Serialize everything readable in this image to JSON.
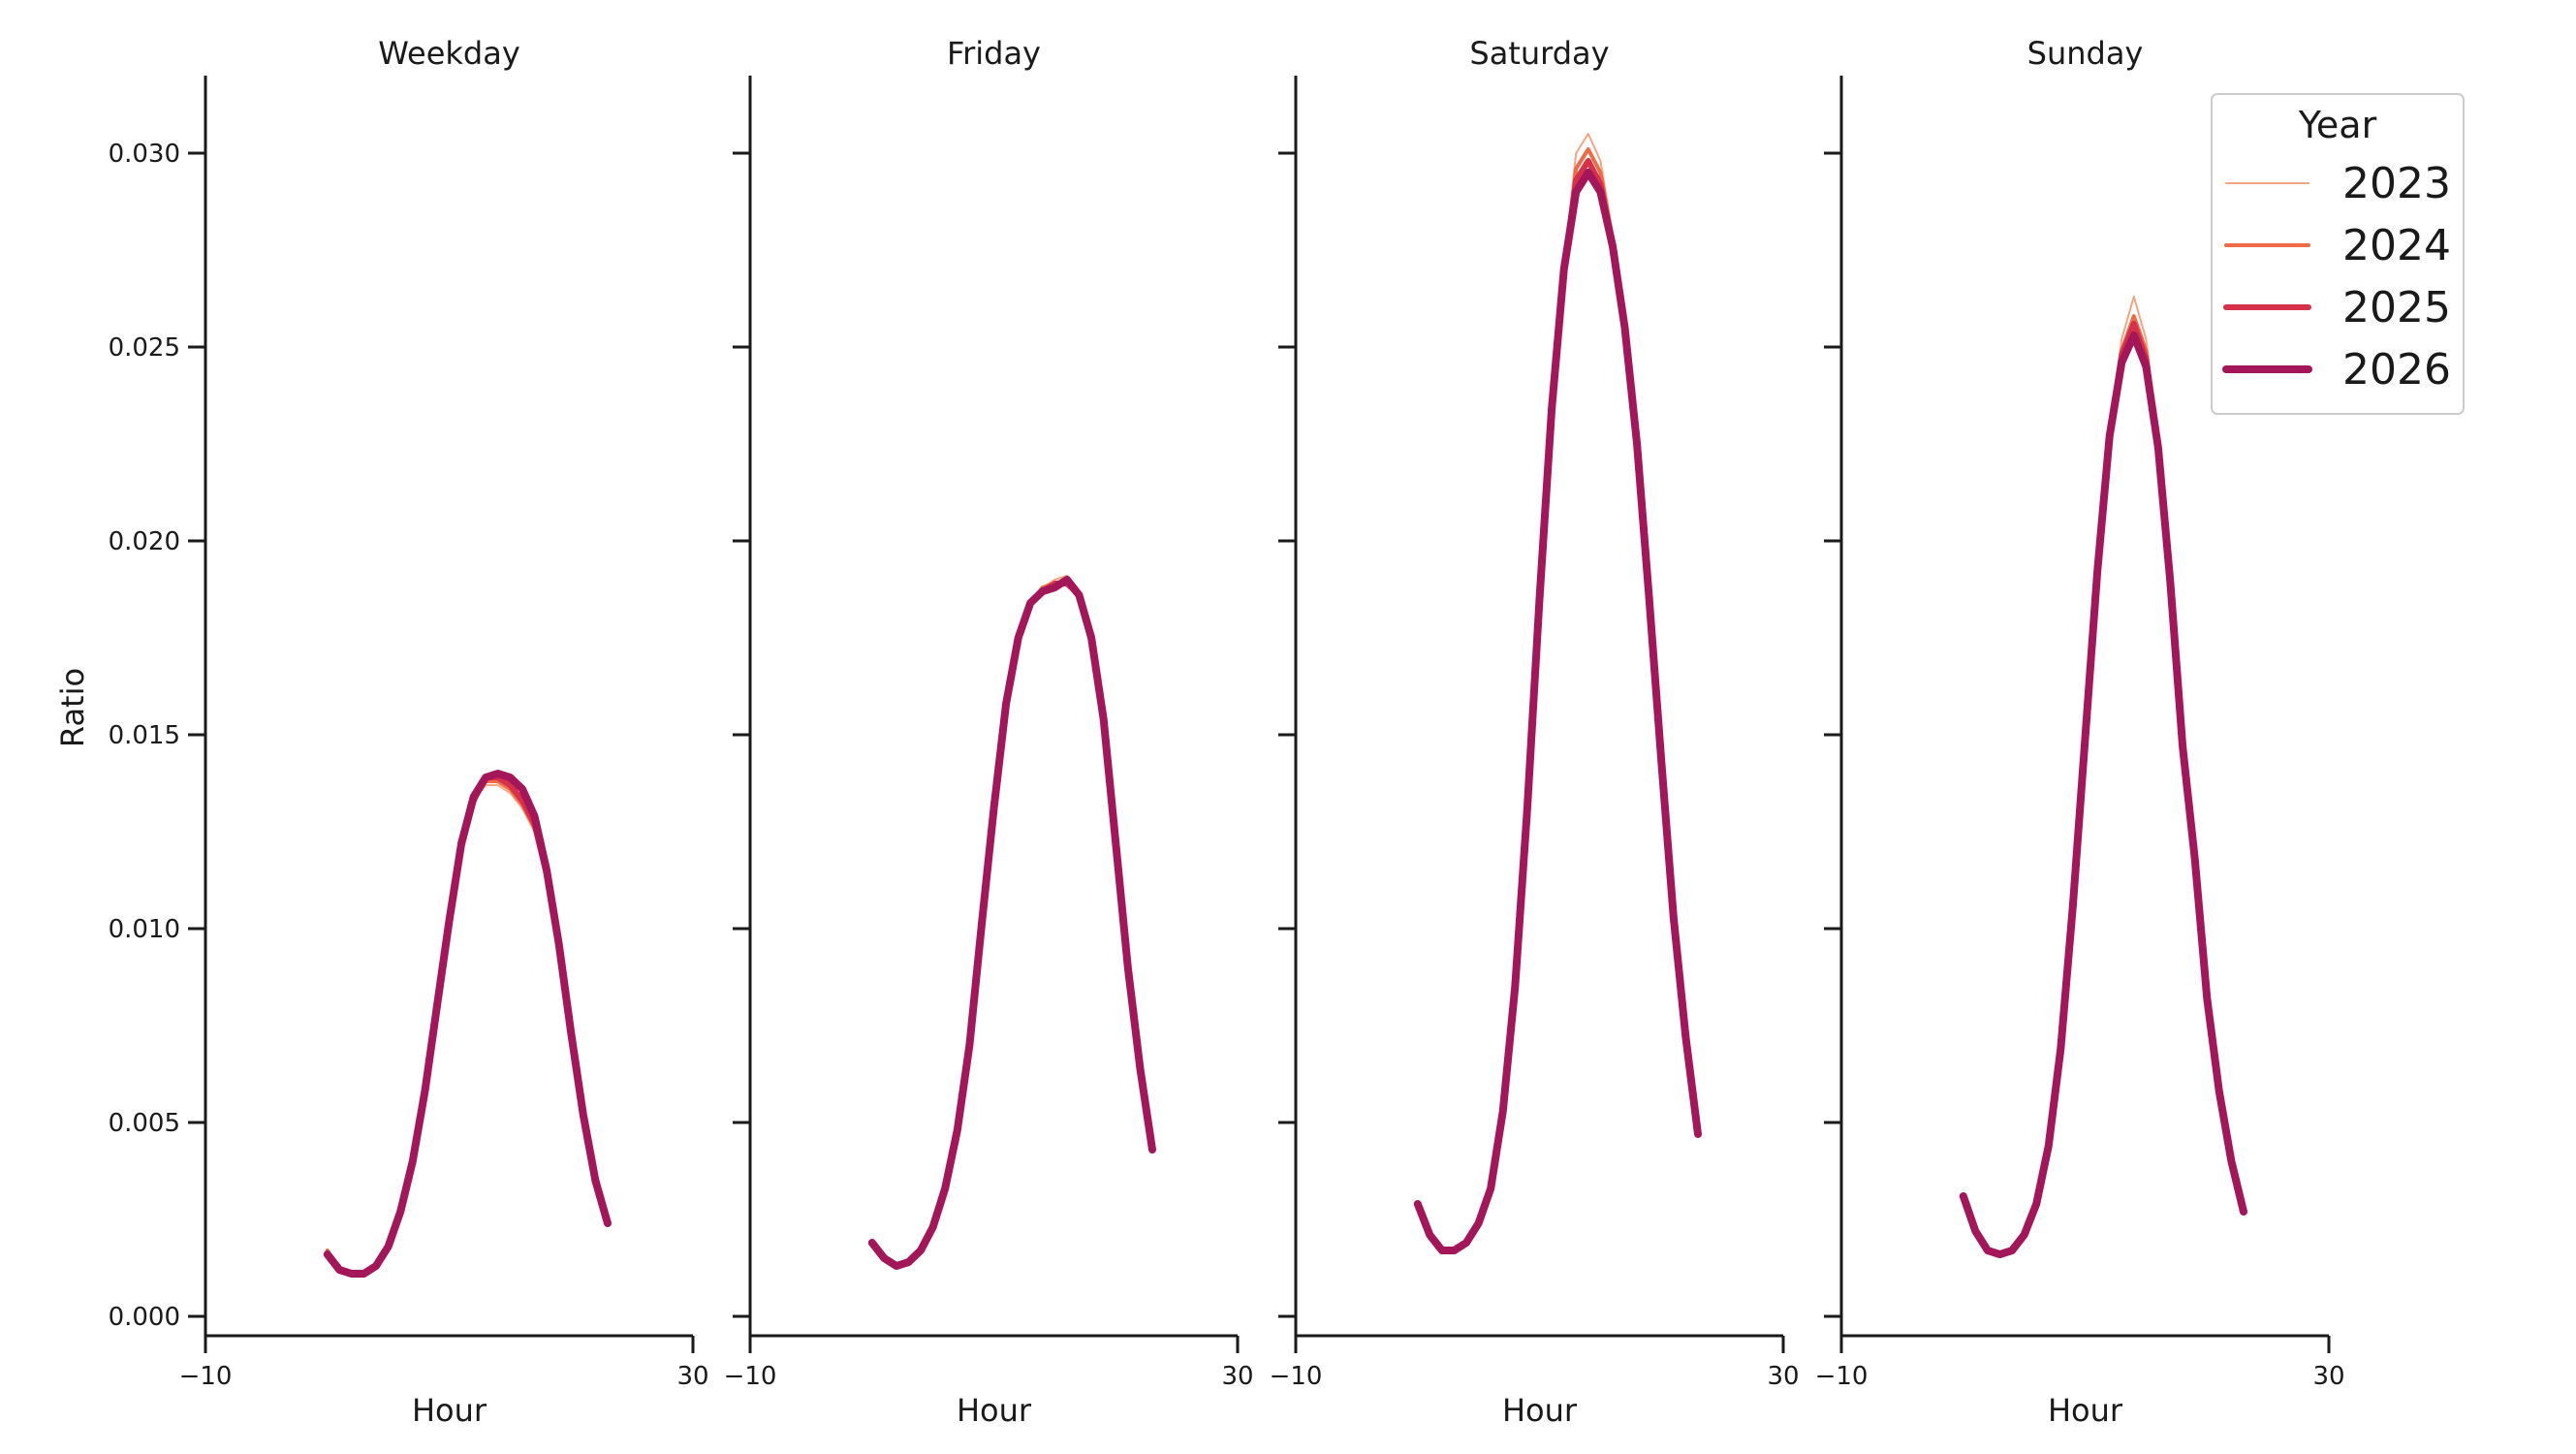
{
  "chart_data": {
    "type": "line",
    "ylabel": "Ratio",
    "ylim": [
      -0.0005,
      0.032
    ],
    "yticks": [
      "0.000",
      "0.005",
      "0.010",
      "0.015",
      "0.020",
      "0.025",
      "0.030"
    ],
    "ytick_values": [
      0.0,
      0.005,
      0.01,
      0.015,
      0.02,
      0.025,
      0.03
    ],
    "xlim": [
      -10,
      30
    ],
    "xticks": [
      "−10",
      "30"
    ],
    "xtick_values": [
      -10,
      30
    ],
    "legend": {
      "title": "Year",
      "placement": "top-right"
    },
    "series_styles": [
      {
        "name": "2023",
        "color": "#f4a582",
        "width": 2
      },
      {
        "name": "2024",
        "color": "#ef6b45",
        "width": 4
      },
      {
        "name": "2025",
        "color": "#d6304a",
        "width": 6
      },
      {
        "name": "2026",
        "color": "#a3175a",
        "width": 8
      }
    ],
    "panels": [
      {
        "title": "Weekday",
        "xlabel": "Hour",
        "x": [
          0,
          1,
          2,
          3,
          4,
          5,
          6,
          7,
          8,
          9,
          10,
          11,
          12,
          13,
          14,
          15,
          16,
          17,
          18,
          19,
          20,
          21,
          22,
          23
        ],
        "series": [
          {
            "name": "2023",
            "values": [
              0.0017,
              0.0012,
              0.0011,
              0.0011,
              0.0013,
              0.0018,
              0.0027,
              0.004,
              0.0058,
              0.008,
              0.0101,
              0.0121,
              0.0133,
              0.0137,
              0.0137,
              0.0135,
              0.0131,
              0.0125,
              0.0112,
              0.0095,
              0.0073,
              0.0052,
              0.0036,
              0.0024
            ]
          },
          {
            "name": "2024",
            "values": [
              0.0017,
              0.0012,
              0.0011,
              0.0011,
              0.0013,
              0.0018,
              0.0027,
              0.004,
              0.0058,
              0.008,
              0.0101,
              0.0121,
              0.0133,
              0.0138,
              0.0138,
              0.0136,
              0.0132,
              0.0126,
              0.0113,
              0.0095,
              0.0073,
              0.0052,
              0.0036,
              0.0024
            ]
          },
          {
            "name": "2025",
            "values": [
              0.0016,
              0.0012,
              0.0011,
              0.0011,
              0.0013,
              0.0018,
              0.0027,
              0.004,
              0.0058,
              0.008,
              0.0101,
              0.0121,
              0.0133,
              0.0139,
              0.0139,
              0.0137,
              0.0133,
              0.0127,
              0.0114,
              0.0096,
              0.0074,
              0.0052,
              0.0036,
              0.0024
            ]
          },
          {
            "name": "2026",
            "values": [
              0.0016,
              0.0012,
              0.0011,
              0.0011,
              0.0013,
              0.0018,
              0.0027,
              0.004,
              0.0058,
              0.008,
              0.0102,
              0.0122,
              0.0134,
              0.0139,
              0.014,
              0.0139,
              0.0136,
              0.0129,
              0.0115,
              0.0096,
              0.0073,
              0.0052,
              0.0035,
              0.0024
            ]
          }
        ]
      },
      {
        "title": "Friday",
        "xlabel": "Hour",
        "x": [
          0,
          1,
          2,
          3,
          4,
          5,
          6,
          7,
          8,
          9,
          10,
          11,
          12,
          13,
          14,
          15,
          16,
          17,
          18,
          19,
          20,
          21,
          22,
          23
        ],
        "series": [
          {
            "name": "2023",
            "values": [
              0.0019,
              0.0015,
              0.0013,
              0.0014,
              0.0017,
              0.0023,
              0.0033,
              0.0048,
              0.007,
              0.0101,
              0.0131,
              0.0158,
              0.0175,
              0.0184,
              0.0188,
              0.019,
              0.0191,
              0.0187,
              0.0175,
              0.0154,
              0.0122,
              0.0091,
              0.0064,
              0.0044
            ]
          },
          {
            "name": "2024",
            "values": [
              0.0019,
              0.0015,
              0.0013,
              0.0014,
              0.0017,
              0.0023,
              0.0033,
              0.0048,
              0.007,
              0.0101,
              0.0131,
              0.0158,
              0.0175,
              0.0184,
              0.0188,
              0.0189,
              0.019,
              0.0186,
              0.0175,
              0.0154,
              0.0122,
              0.0091,
              0.0064,
              0.0044
            ]
          },
          {
            "name": "2025",
            "values": [
              0.0019,
              0.0015,
              0.0013,
              0.0014,
              0.0017,
              0.0023,
              0.0033,
              0.0048,
              0.007,
              0.0101,
              0.0131,
              0.0158,
              0.0175,
              0.0184,
              0.0187,
              0.0189,
              0.0189,
              0.0186,
              0.0175,
              0.0154,
              0.0122,
              0.0091,
              0.0064,
              0.0043
            ]
          },
          {
            "name": "2026",
            "values": [
              0.0019,
              0.0015,
              0.0013,
              0.0014,
              0.0017,
              0.0023,
              0.0033,
              0.0048,
              0.007,
              0.0101,
              0.0131,
              0.0158,
              0.0175,
              0.0184,
              0.0187,
              0.0188,
              0.019,
              0.0186,
              0.0175,
              0.0154,
              0.0122,
              0.009,
              0.0064,
              0.0043
            ]
          }
        ]
      },
      {
        "title": "Saturday",
        "xlabel": "Hour",
        "x": [
          0,
          1,
          2,
          3,
          4,
          5,
          6,
          7,
          8,
          9,
          10,
          11,
          12,
          13,
          14,
          15,
          16,
          17,
          18,
          19,
          20,
          21,
          22,
          23
        ],
        "series": [
          {
            "name": "2023",
            "values": [
              0.0029,
              0.0021,
              0.0017,
              0.0017,
              0.0019,
              0.0024,
              0.0033,
              0.0053,
              0.0085,
              0.0131,
              0.0185,
              0.0235,
              0.027,
              0.03,
              0.0305,
              0.0298,
              0.0279,
              0.0256,
              0.0225,
              0.0185,
              0.0143,
              0.0103,
              0.0072,
              0.0047
            ]
          },
          {
            "name": "2024",
            "values": [
              0.0029,
              0.0021,
              0.0017,
              0.0017,
              0.0019,
              0.0024,
              0.0033,
              0.0053,
              0.0085,
              0.0131,
              0.0185,
              0.0234,
              0.027,
              0.0296,
              0.0301,
              0.0295,
              0.0278,
              0.0255,
              0.0225,
              0.0185,
              0.0143,
              0.0103,
              0.0072,
              0.0047
            ]
          },
          {
            "name": "2025",
            "values": [
              0.0029,
              0.0021,
              0.0017,
              0.0017,
              0.0019,
              0.0024,
              0.0033,
              0.0053,
              0.0085,
              0.0131,
              0.0185,
              0.0234,
              0.027,
              0.0293,
              0.0298,
              0.0292,
              0.0276,
              0.0255,
              0.0225,
              0.0185,
              0.0143,
              0.0103,
              0.0072,
              0.0047
            ]
          },
          {
            "name": "2026",
            "values": [
              0.0029,
              0.0021,
              0.0017,
              0.0017,
              0.0019,
              0.0024,
              0.0033,
              0.0053,
              0.0085,
              0.0131,
              0.0185,
              0.0234,
              0.027,
              0.029,
              0.0295,
              0.029,
              0.0276,
              0.0255,
              0.0225,
              0.0185,
              0.0143,
              0.0103,
              0.0072,
              0.0047
            ]
          }
        ]
      },
      {
        "title": "Sunday",
        "xlabel": "Hour",
        "x": [
          0,
          1,
          2,
          3,
          4,
          5,
          6,
          7,
          8,
          9,
          10,
          11,
          12,
          13,
          14,
          15,
          16,
          17,
          18,
          19,
          20,
          21,
          22,
          23
        ],
        "series": [
          {
            "name": "2023",
            "values": [
              0.0031,
              0.0022,
              0.0017,
              0.0016,
              0.0017,
              0.0021,
              0.0029,
              0.0044,
              0.0069,
              0.0106,
              0.0149,
              0.0192,
              0.0227,
              0.0252,
              0.0263,
              0.0252,
              0.0226,
              0.0189,
              0.0147,
              0.0118,
              0.0082,
              0.0058,
              0.004,
              0.0027
            ]
          },
          {
            "name": "2024",
            "values": [
              0.0031,
              0.0022,
              0.0017,
              0.0016,
              0.0017,
              0.0021,
              0.0029,
              0.0044,
              0.0069,
              0.0106,
              0.0149,
              0.0192,
              0.0227,
              0.0249,
              0.0258,
              0.0249,
              0.0225,
              0.0189,
              0.0147,
              0.0118,
              0.0082,
              0.0058,
              0.004,
              0.0027
            ]
          },
          {
            "name": "2025",
            "values": [
              0.0031,
              0.0022,
              0.0017,
              0.0016,
              0.0017,
              0.0021,
              0.0029,
              0.0044,
              0.0069,
              0.0106,
              0.0149,
              0.0192,
              0.0227,
              0.0248,
              0.0256,
              0.0247,
              0.0224,
              0.0189,
              0.0147,
              0.0118,
              0.0082,
              0.0058,
              0.004,
              0.0027
            ]
          },
          {
            "name": "2026",
            "values": [
              0.0031,
              0.0022,
              0.0017,
              0.0016,
              0.0017,
              0.0021,
              0.0029,
              0.0044,
              0.0069,
              0.0106,
              0.0149,
              0.0192,
              0.0227,
              0.0246,
              0.0253,
              0.0245,
              0.0224,
              0.0189,
              0.0147,
              0.0118,
              0.0082,
              0.0058,
              0.004,
              0.0027
            ]
          }
        ]
      }
    ]
  }
}
